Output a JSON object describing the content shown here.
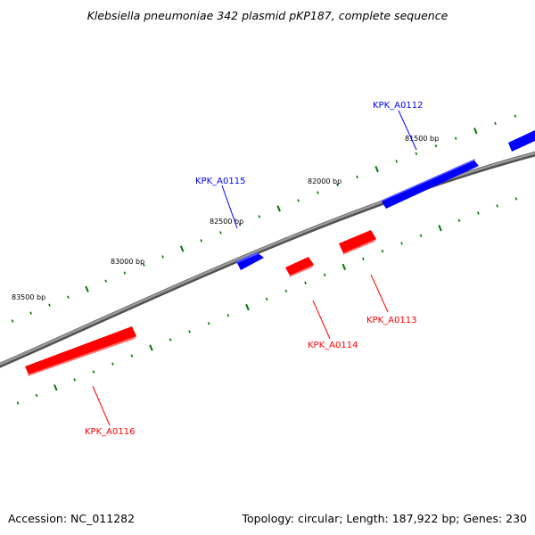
{
  "title": "Klebsiella pneumoniae 342 plasmid pKP187, complete sequence",
  "footer": {
    "accession": "Accession: NC_011282",
    "summary": "Topology: circular; Length: 187,922 bp; Genes: 230"
  },
  "colors": {
    "backbone": "#808080",
    "forward_gene": "#0000ff",
    "reverse_gene": "#ff0000",
    "tick": "#007700"
  },
  "position_labels": [
    "81500 bp",
    "82000 bp",
    "82500 bp",
    "83000 bp",
    "83500 bp"
  ],
  "genes": [
    {
      "name": "KPK_A0112",
      "strand": "forward"
    },
    {
      "name": "KPK_A0113",
      "strand": "reverse"
    },
    {
      "name": "KPK_A0114",
      "strand": "reverse"
    },
    {
      "name": "KPK_A0115",
      "strand": "forward"
    },
    {
      "name": "KPK_A0116",
      "strand": "reverse"
    }
  ]
}
